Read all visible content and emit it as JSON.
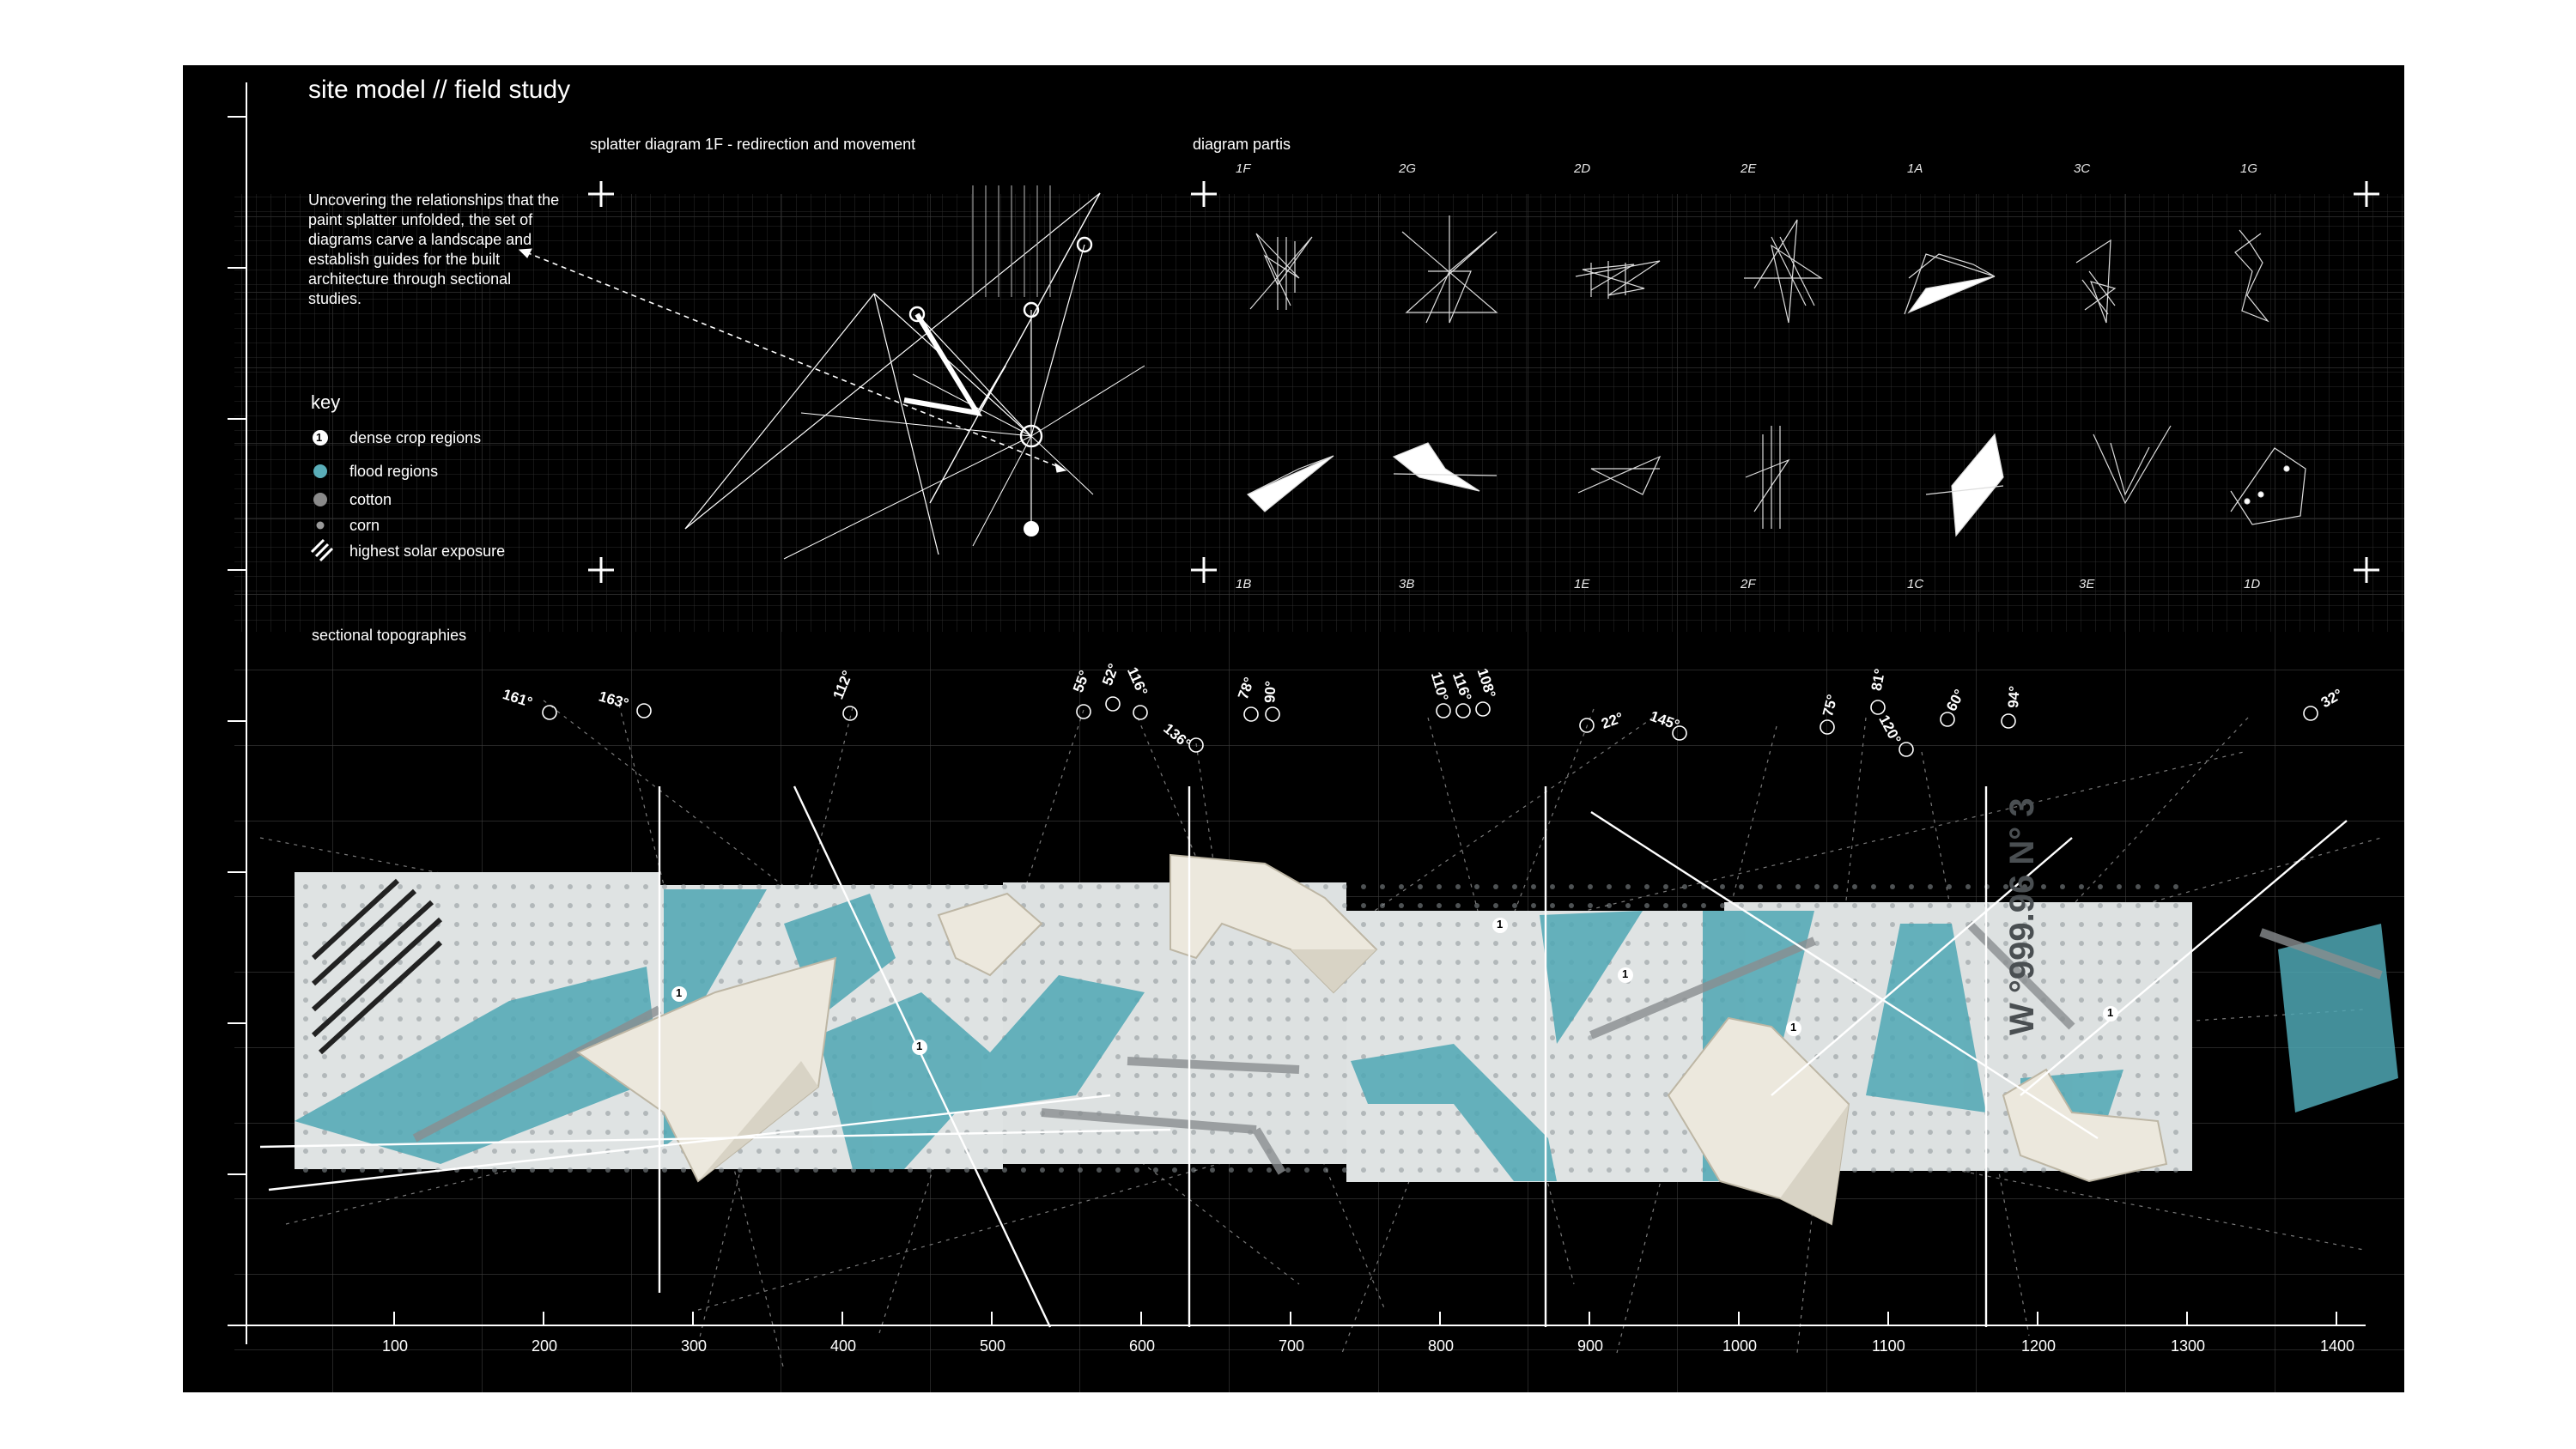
{
  "title": "site model // field study",
  "splatter": {
    "heading": "splatter diagram 1F - redirection and movement",
    "intro": "Uncovering the relationships that the paint splatter unfolded, the set of diagrams carve a landscape and establish guides for the built architecture through sectional studies."
  },
  "key": {
    "title": "key",
    "items": [
      {
        "marker": "numbered-circle",
        "marker_text": "1",
        "label": "dense crop regions"
      },
      {
        "marker": "teal-dot",
        "color": "#5aaeb9",
        "label": "flood regions"
      },
      {
        "marker": "gray-dot",
        "color": "#8a8a8a",
        "label": "cotton"
      },
      {
        "marker": "small-dot",
        "color": "#9a9a9a",
        "label": "corn"
      },
      {
        "marker": "hatch",
        "label": "highest solar exposure"
      }
    ]
  },
  "partis": {
    "heading": "diagram partis",
    "top_codes": [
      "1F",
      "2G",
      "2D",
      "2E",
      "1A",
      "3C",
      "1G"
    ],
    "bottom_codes": [
      "1B",
      "3B",
      "1E",
      "2F",
      "1C",
      "3E",
      "1D"
    ]
  },
  "sectional": {
    "heading": "sectional topographies",
    "angles": [
      "161°",
      "163°",
      "112°",
      "55°",
      "52°",
      "116°",
      "136°",
      "78°",
      "90°",
      "110°",
      "116°",
      "108°",
      "22°",
      "145°",
      "75°",
      "81°",
      "120°",
      "60°",
      "94°",
      "32°"
    ],
    "model_marks": [
      "1",
      "1",
      "1",
      "1",
      "1",
      "1"
    ],
    "board_text": "W °999.96 N° 3"
  },
  "axis": {
    "ticks": [
      "100",
      "200",
      "300",
      "400",
      "500",
      "600",
      "700",
      "800",
      "900",
      "1000",
      "1100",
      "1200",
      "1300",
      "1400"
    ]
  },
  "colors": {
    "background": "#000000",
    "teal": "#4fa7b4",
    "paper": "#e9e6dc"
  }
}
